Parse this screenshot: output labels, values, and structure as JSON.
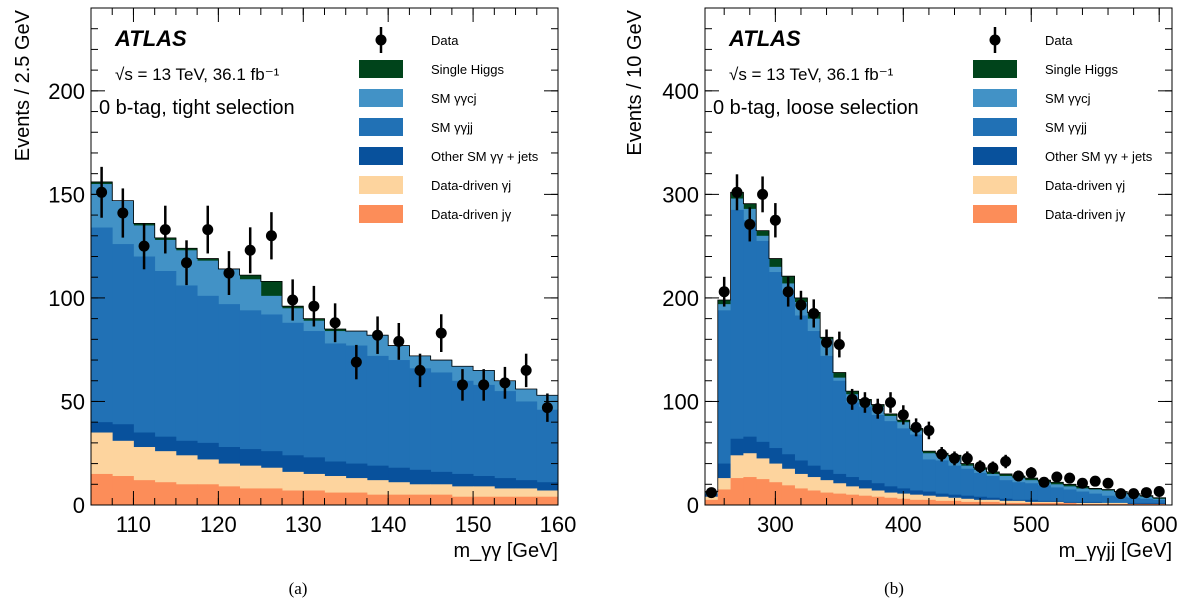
{
  "colors": {
    "data": "#000000",
    "single_higgs": "#00441b",
    "sm_yycj": "#4292c6",
    "sm_yyjj": "#2171b5",
    "other_sm": "#08519c",
    "dd_yj": "#fdd49e",
    "dd_jy": "#fc8d59"
  },
  "legend_order": [
    "data",
    "single_higgs",
    "sm_yycj",
    "sm_yyjj",
    "other_sm",
    "dd_yj",
    "dd_jy"
  ],
  "chart_data": [
    {
      "type": "stacked-histogram",
      "caption": "(a)",
      "atlas_label": "ATLAS",
      "energy_label": "√s = 13 TeV, 36.1 fb⁻¹",
      "selection_label": "0 b-tag, tight selection",
      "xlabel": "m_γγ [GeV]",
      "ylabel": "Events / 2.5 GeV",
      "xlim": [
        105,
        160
      ],
      "ylim": [
        0,
        240
      ],
      "xticks": [
        110,
        120,
        130,
        140,
        150,
        160
      ],
      "xtick_labels": [
        "110",
        "120",
        "130",
        "140",
        "150",
        "160"
      ],
      "yticks": [
        0,
        50,
        100,
        150,
        200
      ],
      "ytick_labels": [
        "0",
        "50",
        "100",
        "150",
        "200"
      ],
      "legend": [
        {
          "key": "data",
          "label": "Data"
        },
        {
          "key": "single_higgs",
          "label": "Single Higgs"
        },
        {
          "key": "sm_yycj",
          "label": "SM γγcj"
        },
        {
          "key": "sm_yyjj",
          "label": "SM γγjj"
        },
        {
          "key": "other_sm",
          "label": "Other SM γγ + jets"
        },
        {
          "key": "dd_yj",
          "label": "Data-driven γj"
        },
        {
          "key": "dd_jy",
          "label": "Data-driven jγ"
        }
      ],
      "legend_placement": "top-right",
      "bin_edges": [
        105,
        107.5,
        110,
        112.5,
        115,
        117.5,
        120,
        122.5,
        125,
        127.5,
        130,
        132.5,
        135,
        137.5,
        140,
        142.5,
        145,
        147.5,
        150,
        152.5,
        155,
        157.5,
        160
      ],
      "stack_cumulative_tops": {
        "dd_jy": [
          15,
          14,
          12,
          11,
          10,
          10,
          9,
          8,
          8,
          7,
          7,
          6,
          6,
          5,
          5,
          5,
          5,
          4,
          4,
          4,
          4,
          4
        ],
        "dd_yj": [
          35,
          31,
          28,
          26,
          24,
          22,
          20,
          19,
          18,
          16,
          15,
          14,
          13,
          12,
          11,
          10,
          10,
          9,
          9,
          8,
          8,
          7
        ],
        "other_sm": [
          40,
          39,
          35,
          33,
          31,
          30,
          28,
          27,
          26,
          24,
          23,
          21,
          20,
          19,
          18,
          17,
          16,
          15,
          14,
          13,
          12,
          11
        ],
        "sm_yyjj": [
          134,
          126,
          120,
          113,
          106,
          101,
          97,
          94,
          92,
          88,
          84,
          78,
          77,
          72,
          70,
          66,
          64,
          60,
          58,
          55,
          50,
          46
        ],
        "sm_yycj": [
          155,
          147,
          135,
          128,
          123,
          118,
          114,
          109,
          101,
          95,
          89,
          84,
          84,
          82,
          77,
          72,
          70,
          67,
          65,
          60,
          56,
          53
        ],
        "single_higgs": [
          156,
          147,
          136,
          129,
          124,
          119,
          114,
          111,
          108,
          96,
          90,
          85,
          84,
          82,
          77,
          72,
          70,
          67,
          65,
          60,
          56,
          53
        ]
      },
      "data_points": {
        "x": [
          106.25,
          108.75,
          111.25,
          113.75,
          116.25,
          118.75,
          121.25,
          123.75,
          126.25,
          128.75,
          131.25,
          133.75,
          136.25,
          138.75,
          141.25,
          143.75,
          146.25,
          148.75,
          151.25,
          153.75,
          156.25,
          158.75
        ],
        "y": [
          151,
          141,
          125,
          133,
          117,
          133,
          112,
          123,
          130,
          99,
          96,
          88,
          69,
          82,
          79,
          65,
          83,
          58,
          58,
          59,
          65,
          47
        ]
      }
    },
    {
      "type": "stacked-histogram",
      "caption": "(b)",
      "atlas_label": "ATLAS",
      "energy_label": "√s = 13 TeV, 36.1 fb⁻¹",
      "selection_label": "0 b-tag, loose selection",
      "xlabel": "m_γγjj [GeV]",
      "ylabel": "Events / 10 GeV",
      "xlim": [
        245,
        610
      ],
      "ylim": [
        0,
        480
      ],
      "xticks": [
        300,
        400,
        500,
        600
      ],
      "xtick_labels": [
        "300",
        "400",
        "500",
        "600"
      ],
      "yticks": [
        0,
        100,
        200,
        300,
        400
      ],
      "ytick_labels": [
        "0",
        "100",
        "200",
        "300",
        "400"
      ],
      "legend": [
        {
          "key": "data",
          "label": "Data"
        },
        {
          "key": "single_higgs",
          "label": "Single Higgs"
        },
        {
          "key": "sm_yycj",
          "label": "SM γγcj"
        },
        {
          "key": "sm_yyjj",
          "label": "SM γγjj"
        },
        {
          "key": "other_sm",
          "label": "Other SM γγ + jets"
        },
        {
          "key": "dd_yj",
          "label": "Data-driven γj"
        },
        {
          "key": "dd_jy",
          "label": "Data-driven jγ"
        }
      ],
      "legend_placement": "top-right",
      "bin_edges": [
        245,
        255,
        265,
        275,
        285,
        295,
        305,
        315,
        325,
        335,
        345,
        355,
        365,
        375,
        385,
        395,
        405,
        415,
        425,
        435,
        445,
        455,
        465,
        475,
        485,
        495,
        505,
        515,
        525,
        535,
        545,
        555,
        565,
        575,
        585,
        595,
        605
      ],
      "stack_cumulative_tops": {
        "dd_jy": [
          5,
          15,
          26,
          27,
          25,
          22,
          19,
          16,
          14,
          12,
          11,
          10,
          9,
          8,
          7,
          6,
          5,
          5,
          4,
          4,
          3,
          3,
          3,
          2,
          2,
          2,
          2,
          2,
          2,
          1,
          1,
          1,
          1,
          1,
          1,
          1
        ],
        "dd_yj": [
          8,
          26,
          48,
          50,
          45,
          40,
          35,
          30,
          27,
          24,
          21,
          18,
          16,
          14,
          12,
          11,
          10,
          9,
          8,
          7,
          6,
          5,
          5,
          4,
          4,
          3,
          3,
          3,
          2,
          2,
          2,
          2,
          2,
          1,
          1,
          1
        ],
        "other_sm": [
          11,
          40,
          64,
          66,
          61,
          55,
          49,
          43,
          38,
          34,
          30,
          27,
          24,
          21,
          18,
          16,
          14,
          13,
          11,
          10,
          9,
          8,
          7,
          6,
          5,
          5,
          4,
          4,
          3,
          3,
          3,
          2,
          2,
          2,
          2,
          2
        ],
        "sm_yyjj": [
          11,
          188,
          285,
          275,
          255,
          225,
          205,
          183,
          168,
          144,
          120,
          99,
          95,
          87,
          81,
          74,
          68,
          44,
          43,
          38,
          35,
          31,
          28,
          24,
          22,
          21,
          19,
          17,
          15,
          13,
          11,
          9,
          8,
          7,
          6,
          5
        ],
        "sm_yycj": [
          12,
          194,
          296,
          286,
          260,
          230,
          214,
          196,
          180,
          160,
          123,
          107,
          100,
          95,
          86,
          80,
          72,
          50,
          48,
          46,
          38,
          34,
          30,
          28,
          26,
          24,
          22,
          20,
          18,
          16,
          15,
          14,
          12,
          10,
          8,
          6
        ],
        "single_higgs": [
          13,
          198,
          302,
          291,
          265,
          238,
          221,
          200,
          186,
          162,
          128,
          110,
          102,
          97,
          88,
          82,
          74,
          52,
          50,
          48,
          40,
          36,
          32,
          30,
          28,
          26,
          24,
          22,
          20,
          18,
          16,
          15,
          13,
          11,
          9,
          7
        ]
      },
      "data_points": {
        "x": [
          250,
          260,
          270,
          280,
          290,
          300,
          310,
          320,
          330,
          340,
          350,
          360,
          370,
          380,
          390,
          400,
          410,
          420,
          430,
          440,
          450,
          460,
          470,
          480,
          490,
          500,
          510,
          520,
          530,
          540,
          550,
          560,
          570,
          580,
          590,
          600
        ],
        "y": [
          12,
          206,
          302,
          271,
          300,
          275,
          206,
          193,
          185,
          157,
          155,
          102,
          99,
          93,
          99,
          87,
          75,
          72,
          49,
          45,
          45,
          37,
          36,
          42,
          28,
          31,
          22,
          27,
          26,
          21,
          23,
          21,
          11,
          11,
          12,
          13
        ]
      }
    }
  ]
}
